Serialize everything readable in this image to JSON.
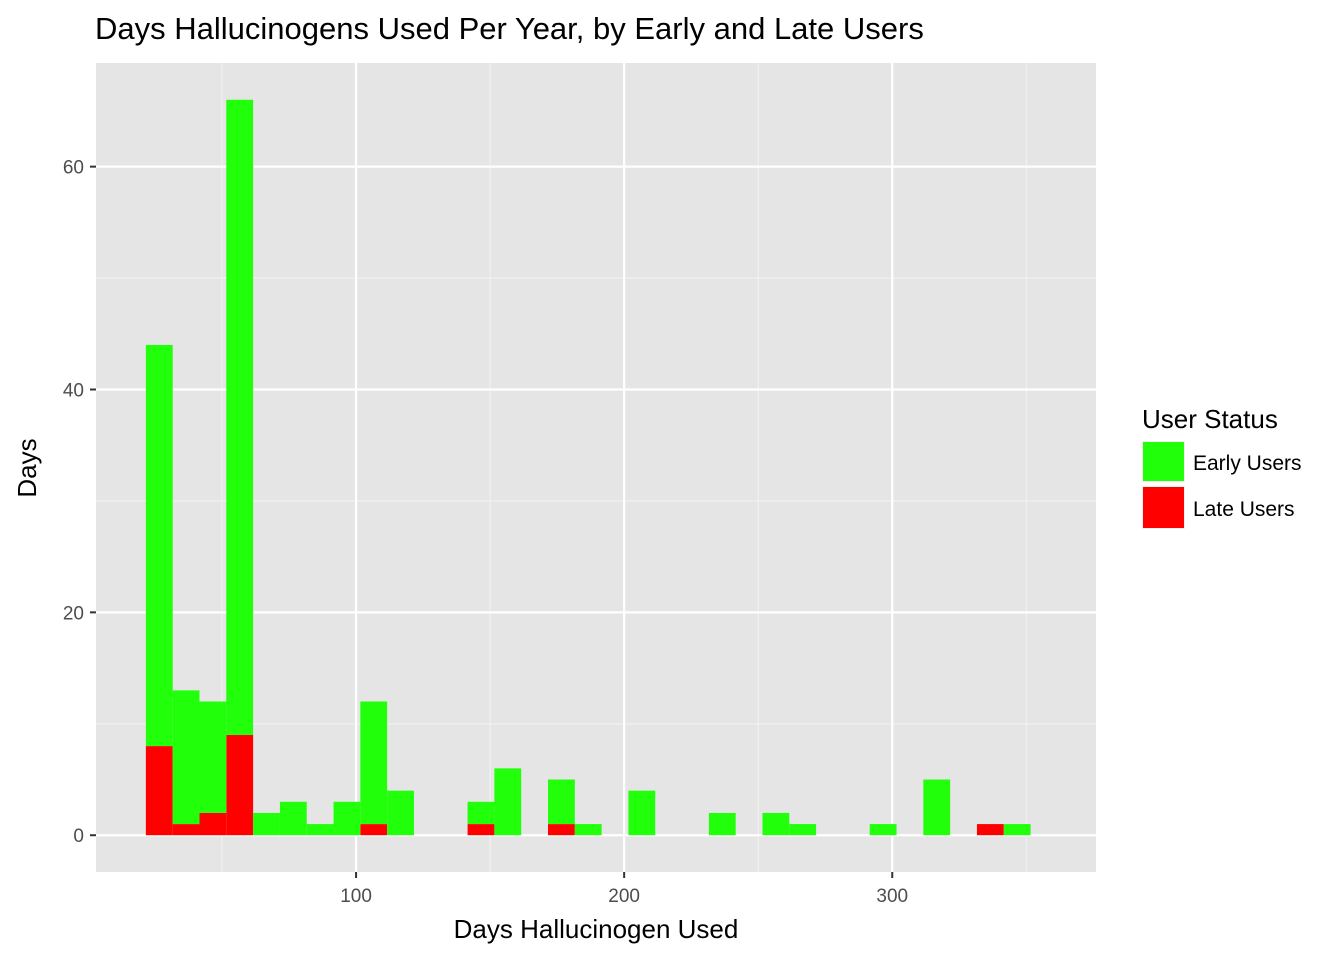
{
  "chart_data": {
    "type": "bar",
    "stacked": true,
    "title": "Days Hallucinogens Used Per Year, by Early and Late Users",
    "xlabel": "Days Hallucinogen Used",
    "ylabel": "Days",
    "xlim": [
      3,
      376
    ],
    "ylim": [
      -3.3,
      69.3
    ],
    "x_ticks": [
      100,
      200,
      300
    ],
    "y_ticks": [
      0,
      20,
      40,
      60
    ],
    "x_minor_ticks": [
      50,
      150,
      250,
      350
    ],
    "y_minor_ticks": [
      10,
      30,
      50
    ],
    "grid": true,
    "bin_width": 10,
    "x": [
      26.6,
      36.6,
      46.6,
      56.6,
      66.6,
      76.6,
      86.6,
      96.6,
      106.6,
      116.6,
      126.6,
      136.6,
      146.6,
      156.6,
      166.6,
      176.6,
      186.6,
      196.6,
      206.6,
      216.6,
      226.6,
      236.6,
      246.6,
      256.6,
      266.6,
      276.6,
      286.6,
      296.6,
      306.6,
      316.6,
      326.6,
      336.6,
      346.6
    ],
    "series": [
      {
        "name": "Early Users",
        "color": "#22ff0a",
        "values": [
          36,
          12,
          10,
          57,
          2,
          3,
          1,
          3,
          11,
          4,
          0,
          0,
          2,
          6,
          0,
          4,
          1,
          0,
          4,
          0,
          0,
          2,
          0,
          2,
          1,
          0,
          0,
          1,
          0,
          5,
          0,
          0,
          1
        ]
      },
      {
        "name": "Late Users",
        "color": "#ff0000",
        "values": [
          8,
          1,
          2,
          9,
          0,
          0,
          0,
          0,
          1,
          0,
          0,
          0,
          1,
          0,
          0,
          1,
          0,
          0,
          0,
          0,
          0,
          0,
          0,
          0,
          0,
          0,
          0,
          0,
          0,
          0,
          0,
          1,
          0
        ]
      }
    ],
    "legend": {
      "title": "User Status",
      "position": "right",
      "entries": [
        "Early Users",
        "Late Users"
      ]
    }
  }
}
